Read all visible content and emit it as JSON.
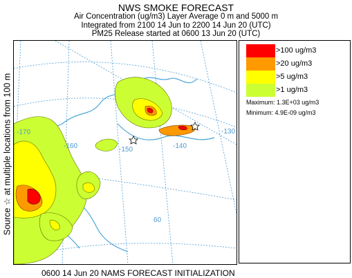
{
  "title": "NWS SMOKE FORECAST",
  "subtitle_lines": [
    "Air Concentration (ug/m3) Layer Average    0 m and  5000 m",
    "Integrated from 2100 14 Jun to 2200 14 Jun 20 (UTC)",
    "PM25 Release started at 0600 13 Jun 20 (UTC)"
  ],
  "side_label": "Source ☆ at multiple locations  from  100 m",
  "legend": {
    "items": [
      {
        "label": ">100 ug/m3",
        "color": "#ff0000"
      },
      {
        "label": ">20 ug/m3",
        "color": "#ff9900"
      },
      {
        "label": ">5 ug/m3",
        "color": "#ffff00"
      },
      {
        "label": ">1 ug/m3",
        "color": "#ccff33"
      }
    ],
    "maximum": "Maximum: 1.3E+03 ug/m3",
    "minimum": "Minimum: 4.9E-09 ug/m3"
  },
  "map": {
    "longitude_labels": [
      "-170",
      "-160",
      "-150",
      "-140",
      "-130"
    ],
    "latitude_labels": [
      "60"
    ],
    "graticule_color": "#4a9bd4",
    "coast_color": "#4aa6d8",
    "source_marker": "star"
  },
  "footer": "0600 14 Jun 20 NAMS FORECAST INITIALIZATION"
}
